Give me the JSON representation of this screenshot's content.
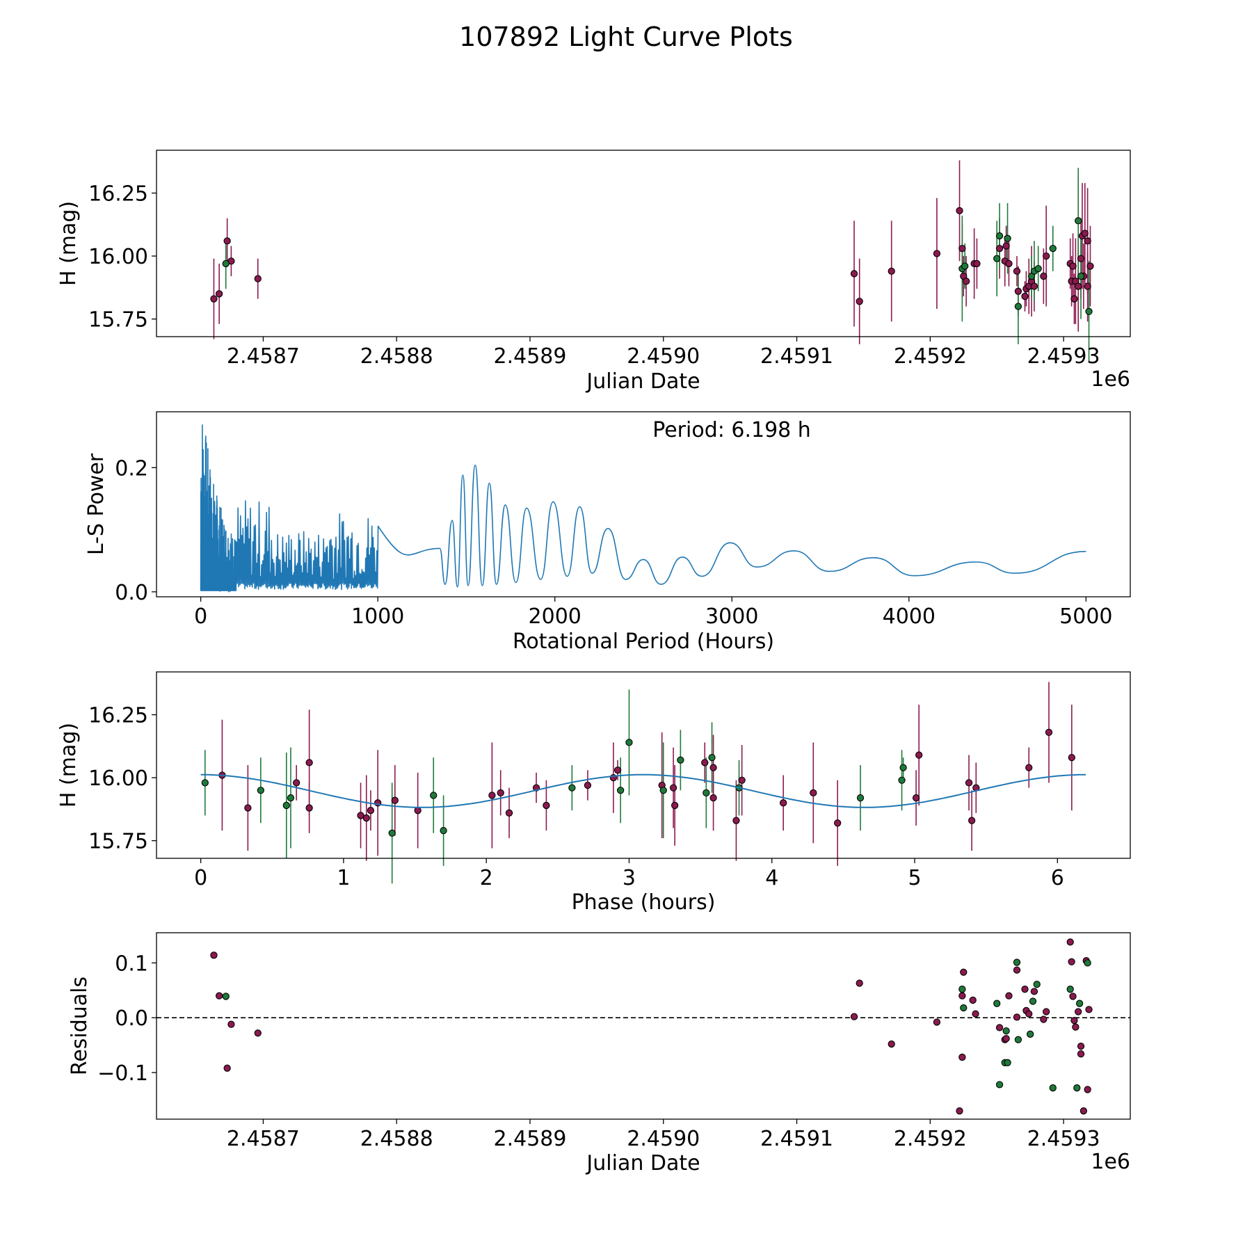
{
  "figure_title": "107892 Light Curve Plots",
  "colors": {
    "g_band": "#1f7a3a",
    "o_band": "#8b1a4f",
    "periodogram": "#1f77b4",
    "fit_curve": "#1f77b4"
  },
  "chart_data": [
    {
      "id": "light_curve",
      "type": "scatter",
      "error_bars": true,
      "xlabel": "Julian Date",
      "ylabel": "H (mag)",
      "x_offset_label": "1e6",
      "xlim": [
        2.45862,
        2.45935
      ],
      "ylim": [
        15.68,
        16.42
      ],
      "xticks": [
        2.4587,
        2.4588,
        2.4589,
        2.459,
        2.4591,
        2.4592,
        2.4593
      ],
      "xtick_labels": [
        "2.4587",
        "2.4588",
        "2.4589",
        "2.4590",
        "2.4591",
        "2.4592",
        "2.4593"
      ],
      "yticks": [
        15.75,
        16.0,
        16.25
      ],
      "ytick_labels": [
        "15.75",
        "16.00",
        "16.25"
      ],
      "series": [
        {
          "name": "o",
          "color": "#8b1a4f",
          "points": [
            [
              2.458663,
              15.83,
              0.16
            ],
            [
              2.458667,
              15.85,
              0.12
            ],
            [
              2.458673,
              16.06,
              0.09
            ],
            [
              2.458676,
              15.98,
              0.06
            ],
            [
              2.458696,
              15.91,
              0.08
            ],
            [
              2.459143,
              15.93,
              0.21
            ],
            [
              2.459147,
              15.82,
              0.17
            ],
            [
              2.459171,
              15.94,
              0.2
            ],
            [
              2.459205,
              16.01,
              0.22
            ],
            [
              2.459222,
              16.18,
              0.2
            ],
            [
              2.459224,
              16.03,
              0.1
            ],
            [
              2.459225,
              15.92,
              0.08
            ],
            [
              2.459227,
              15.9,
              0.1
            ],
            [
              2.459233,
              15.97,
              0.14
            ],
            [
              2.459235,
              15.97,
              0.1
            ],
            [
              2.459252,
              16.03,
              0.12
            ],
            [
              2.459256,
              15.98,
              0.1
            ],
            [
              2.459257,
              16.04,
              0.08
            ],
            [
              2.459259,
              15.97,
              0.09
            ],
            [
              2.459266,
              15.86,
              0.1
            ],
            [
              2.459265,
              15.94,
              0.06
            ],
            [
              2.459271,
              15.84,
              0.06
            ],
            [
              2.459272,
              15.87,
              0.07
            ],
            [
              2.459274,
              15.88,
              0.11
            ],
            [
              2.459276,
              15.9,
              0.14
            ],
            [
              2.459278,
              15.88,
              0.1
            ],
            [
              2.459285,
              15.92,
              0.11
            ],
            [
              2.459287,
              16.0,
              0.2
            ],
            [
              2.459305,
              15.97,
              0.1
            ],
            [
              2.459306,
              15.9,
              0.1
            ],
            [
              2.459307,
              15.96,
              0.13
            ],
            [
              2.459308,
              15.83,
              0.1
            ],
            [
              2.459309,
              15.9,
              0.17
            ],
            [
              2.459311,
              15.88,
              0.18
            ],
            [
              2.459313,
              15.99,
              0.16
            ],
            [
              2.459314,
              16.08,
              0.21
            ],
            [
              2.459315,
              15.92,
              0.13
            ],
            [
              2.459316,
              16.09,
              0.2
            ],
            [
              2.459318,
              15.88,
              0.14
            ],
            [
              2.459318,
              16.06,
              0.21
            ],
            [
              2.45932,
              15.96,
              0.16
            ]
          ]
        },
        {
          "name": "g",
          "color": "#1f7a3a",
          "points": [
            [
              2.458672,
              15.97,
              0.1
            ],
            [
              2.459224,
              15.95,
              0.21
            ],
            [
              2.459226,
              15.96,
              0.09
            ],
            [
              2.45925,
              15.99,
              0.15
            ],
            [
              2.459252,
              16.08,
              0.13
            ],
            [
              2.459258,
              16.07,
              0.14
            ],
            [
              2.459266,
              15.8,
              0.15
            ],
            [
              2.459276,
              15.92,
              0.08
            ],
            [
              2.459278,
              15.94,
              0.12
            ],
            [
              2.459281,
              15.95,
              0.09
            ],
            [
              2.459292,
              16.03,
              0.09
            ],
            [
              2.459311,
              16.14,
              0.21
            ],
            [
              2.459313,
              15.92,
              0.17
            ],
            [
              2.459319,
              15.78,
              0.2
            ]
          ]
        }
      ]
    },
    {
      "id": "periodogram",
      "type": "line",
      "xlabel": "Rotational Period (Hours)",
      "ylabel": "L-S Power",
      "annotation": "Period: 6.198 h",
      "xlim": [
        -250,
        5250
      ],
      "ylim": [
        -0.008,
        0.29
      ],
      "xticks": [
        0,
        1000,
        2000,
        3000,
        4000,
        5000
      ],
      "xtick_labels": [
        "0",
        "1000",
        "2000",
        "3000",
        "4000",
        "5000"
      ],
      "yticks": [
        0.0,
        0.2
      ],
      "ytick_labels": [
        "0.0",
        "0.2"
      ],
      "peaks": [
        [
          1350,
          0.07
        ],
        [
          1420,
          0.115
        ],
        [
          1480,
          0.188
        ],
        [
          1550,
          0.204
        ],
        [
          1630,
          0.175
        ],
        [
          1720,
          0.14
        ],
        [
          1840,
          0.135
        ],
        [
          1990,
          0.145
        ],
        [
          2140,
          0.137
        ],
        [
          2300,
          0.102
        ],
        [
          2500,
          0.052
        ],
        [
          2720,
          0.056
        ],
        [
          2990,
          0.079
        ],
        [
          3350,
          0.066
        ],
        [
          3800,
          0.055
        ],
        [
          4380,
          0.048
        ],
        [
          5000,
          0.065
        ]
      ],
      "troughs": [
        [
          1380,
          0.012
        ],
        [
          1450,
          0.008
        ],
        [
          1510,
          0.01
        ],
        [
          1590,
          0.01
        ],
        [
          1670,
          0.012
        ],
        [
          1780,
          0.015
        ],
        [
          1920,
          0.02
        ],
        [
          2070,
          0.025
        ],
        [
          2210,
          0.03
        ],
        [
          2400,
          0.02
        ],
        [
          2600,
          0.012
        ],
        [
          2830,
          0.025
        ],
        [
          3140,
          0.04
        ],
        [
          3550,
          0.033
        ],
        [
          4030,
          0.026
        ],
        [
          4600,
          0.03
        ]
      ]
    },
    {
      "id": "phased",
      "type": "scatter",
      "error_bars": true,
      "xlabel": "Phase (hours)",
      "ylabel": "H (mag)",
      "xlim": [
        -0.31,
        6.51
      ],
      "ylim": [
        15.68,
        16.42
      ],
      "xticks": [
        0,
        1,
        2,
        3,
        4,
        5,
        6
      ],
      "xtick_labels": [
        "0",
        "1",
        "2",
        "3",
        "4",
        "5",
        "6"
      ],
      "yticks": [
        15.75,
        16.0,
        16.25
      ],
      "ytick_labels": [
        "15.75",
        "16.00",
        "16.25"
      ],
      "fit": {
        "period_h": 6.198,
        "mean": 15.947,
        "amplitude": 0.065,
        "harmonic": 2,
        "phase_shift_h": 0.0
      },
      "series": [
        {
          "name": "o",
          "color": "#8b1a4f",
          "points": [
            [
              0.15,
              16.01,
              0.22
            ],
            [
              0.33,
              15.88,
              0.17
            ],
            [
              0.67,
              15.98,
              0.07
            ],
            [
              0.76,
              16.06,
              0.21
            ],
            [
              0.76,
              15.88,
              0.1
            ],
            [
              1.12,
              15.85,
              0.13
            ],
            [
              1.16,
              15.84,
              0.17
            ],
            [
              1.19,
              15.87,
              0.08
            ],
            [
              1.24,
              15.9,
              0.21
            ],
            [
              1.36,
              15.91,
              0.14
            ],
            [
              1.52,
              15.87,
              0.15
            ],
            [
              2.04,
              15.93,
              0.21
            ],
            [
              2.1,
              15.94,
              0.09
            ],
            [
              2.16,
              15.86,
              0.1
            ],
            [
              2.35,
              15.96,
              0.06
            ],
            [
              2.42,
              15.89,
              0.1
            ],
            [
              2.71,
              15.97,
              0.06
            ],
            [
              2.89,
              16.0,
              0.14
            ],
            [
              2.92,
              16.03,
              0.04
            ],
            [
              3.23,
              15.97,
              0.21
            ],
            [
              3.31,
              15.96,
              0.16
            ],
            [
              3.32,
              15.89,
              0.16
            ],
            [
              3.53,
              16.06,
              0.08
            ],
            [
              3.59,
              15.92,
              0.13
            ],
            [
              3.59,
              16.04,
              0.13
            ],
            [
              3.75,
              15.83,
              0.16
            ],
            [
              3.79,
              15.99,
              0.14
            ],
            [
              4.08,
              15.9,
              0.11
            ],
            [
              4.29,
              15.94,
              0.2
            ],
            [
              4.46,
              15.82,
              0.17
            ],
            [
              5.01,
              15.92,
              0.11
            ],
            [
              5.03,
              16.09,
              0.2
            ],
            [
              5.38,
              15.98,
              0.11
            ],
            [
              5.4,
              15.83,
              0.12
            ],
            [
              5.43,
              15.96,
              0.1
            ],
            [
              5.8,
              16.04,
              0.08
            ],
            [
              5.94,
              16.18,
              0.2
            ],
            [
              6.1,
              16.08,
              0.21
            ]
          ]
        },
        {
          "name": "g",
          "color": "#1f7a3a",
          "points": [
            [
              0.03,
              15.98,
              0.13
            ],
            [
              0.42,
              15.95,
              0.13
            ],
            [
              0.6,
              15.89,
              0.21
            ],
            [
              0.63,
              15.92,
              0.2
            ],
            [
              1.34,
              15.78,
              0.2
            ],
            [
              1.63,
              15.93,
              0.15
            ],
            [
              1.7,
              15.79,
              0.14
            ],
            [
              2.6,
              15.96,
              0.09
            ],
            [
              2.94,
              15.95,
              0.13
            ],
            [
              3.0,
              16.14,
              0.21
            ],
            [
              3.24,
              15.95,
              0.19
            ],
            [
              3.36,
              16.07,
              0.12
            ],
            [
              3.54,
              15.94,
              0.14
            ],
            [
              3.58,
              16.08,
              0.14
            ],
            [
              3.77,
              15.96,
              0.11
            ],
            [
              4.62,
              15.92,
              0.13
            ],
            [
              4.91,
              15.99,
              0.12
            ],
            [
              4.92,
              16.04,
              0.04
            ]
          ]
        }
      ]
    },
    {
      "id": "residuals",
      "type": "scatter",
      "xlabel": "Julian Date",
      "ylabel": "Residuals",
      "x_offset_label": "1e6",
      "zero_line": true,
      "xlim": [
        2.45862,
        2.45935
      ],
      "ylim": [
        -0.185,
        0.155
      ],
      "xticks": [
        2.4587,
        2.4588,
        2.4589,
        2.459,
        2.4591,
        2.4592,
        2.4593
      ],
      "xtick_labels": [
        "2.4587",
        "2.4588",
        "2.4589",
        "2.4590",
        "2.4591",
        "2.4592",
        "2.4593"
      ],
      "yticks": [
        -0.1,
        0.0,
        0.1
      ],
      "ytick_labels": [
        "−0.1",
        "0.0",
        "0.1"
      ],
      "series": [
        {
          "name": "o",
          "color": "#8b1a4f",
          "points": [
            [
              2.458663,
              0.114
            ],
            [
              2.458667,
              0.04
            ],
            [
              2.458673,
              -0.092
            ],
            [
              2.458676,
              -0.012
            ],
            [
              2.458696,
              -0.028
            ],
            [
              2.459143,
              0.002
            ],
            [
              2.459147,
              0.063
            ],
            [
              2.459171,
              -0.048
            ],
            [
              2.459205,
              -0.008
            ],
            [
              2.459222,
              -0.17
            ],
            [
              2.459224,
              -0.072
            ],
            [
              2.459224,
              0.04
            ],
            [
              2.459225,
              0.083
            ],
            [
              2.459232,
              0.032
            ],
            [
              2.459234,
              0.007
            ],
            [
              2.459252,
              -0.018
            ],
            [
              2.459256,
              -0.04
            ],
            [
              2.459257,
              -0.038
            ],
            [
              2.459259,
              0.04
            ],
            [
              2.459265,
              0.087
            ],
            [
              2.459265,
              0.001
            ],
            [
              2.459271,
              0.052
            ],
            [
              2.459272,
              0.013
            ],
            [
              2.459274,
              0.007
            ],
            [
              2.459278,
              0.048
            ],
            [
              2.459285,
              -0.003
            ],
            [
              2.459287,
              0.011
            ],
            [
              2.459305,
              0.138
            ],
            [
              2.459306,
              0.102
            ],
            [
              2.459307,
              0.039
            ],
            [
              2.459308,
              -0.005
            ],
            [
              2.459309,
              -0.017
            ],
            [
              2.459311,
              0.011
            ],
            [
              2.459313,
              -0.052
            ],
            [
              2.459313,
              -0.066
            ],
            [
              2.459315,
              -0.17
            ],
            [
              2.459317,
              0.104
            ],
            [
              2.459318,
              -0.131
            ],
            [
              2.459319,
              0.015
            ]
          ]
        },
        {
          "name": "g",
          "color": "#1f7a3a",
          "points": [
            [
              2.458672,
              0.039
            ],
            [
              2.459224,
              0.052
            ],
            [
              2.459225,
              0.018
            ],
            [
              2.45925,
              0.026
            ],
            [
              2.459252,
              -0.122
            ],
            [
              2.459256,
              -0.082
            ],
            [
              2.459257,
              -0.024
            ],
            [
              2.459258,
              -0.082
            ],
            [
              2.459265,
              0.101
            ],
            [
              2.459266,
              -0.04
            ],
            [
              2.459275,
              -0.03
            ],
            [
              2.459277,
              0.03
            ],
            [
              2.45928,
              0.061
            ],
            [
              2.459292,
              -0.128
            ],
            [
              2.459305,
              0.052
            ],
            [
              2.45931,
              -0.128
            ],
            [
              2.459312,
              0.026
            ],
            [
              2.459318,
              0.1
            ]
          ]
        }
      ]
    }
  ]
}
